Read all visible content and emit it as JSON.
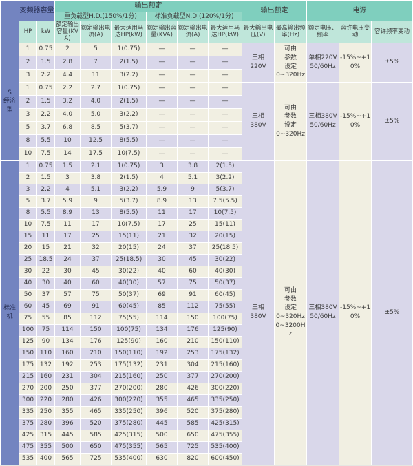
{
  "colors": {
    "group_header_blue": "#7384c0",
    "section_header_teal": "#7fcfbe",
    "sub_header_teal": "#93d7c6",
    "column_header_teal": "#bfe6da",
    "row_cream": "#f1efe2",
    "row_lavender": "#d9d7ea",
    "grid_line": "#ffffff",
    "text": "#3c3c3c"
  },
  "table": {
    "headers": {
      "capacity": "变频器容量",
      "output_rating": "输出额定",
      "hd": "重负载型H.D.(150%/1分)",
      "nd": "标准负载型N.D.(120%/1分)",
      "power": "电源",
      "cols": [
        "HP",
        "kW",
        "额定输出容量(KVA)",
        "额定输出电流(A)",
        "最大适用马达HP(kW)",
        "额定输出容量(KVA)",
        "额定输出电流(A)",
        "最大适用马达HP(kW)",
        "最大输出电压(V)",
        "最高输出频率(Hz)",
        "额定电压、频率",
        "容许电压变动",
        "容许频率变动"
      ]
    },
    "col_keys": [
      "hp",
      "kw",
      "hd-kva",
      "hd-current",
      "hd-motor",
      "nd-kva",
      "nd-current",
      "nd-motor"
    ],
    "groups": [
      {
        "label": "S\n经济型",
        "blocks": [
          {
            "voltage": "三相\n220V",
            "frequency": "可由\n参数\n设定\n0~320Hz",
            "supply": "单相220V\n50/60Hz",
            "voltage_tolerance": "-15%~+10%",
            "frequency_tolerance": "±5%",
            "rows": [
              {
                "shaded": false,
                "cells": [
                  "1",
                  "0.75",
                  "2",
                  "5",
                  "1(0.75)",
                  "—",
                  "—",
                  "—"
                ]
              },
              {
                "shaded": true,
                "cells": [
                  "2",
                  "1.5",
                  "2.8",
                  "7",
                  "2(1.5)",
                  "—",
                  "—",
                  "—"
                ]
              },
              {
                "shaded": false,
                "cells": [
                  "3",
                  "2.2",
                  "4.4",
                  "11",
                  "3(2.2)",
                  "—",
                  "—",
                  "—"
                ]
              }
            ]
          },
          {
            "voltage": "三相\n380V",
            "frequency": "可由\n参数\n设定\n0~320Hz",
            "supply": "三相380V\n50/60Hz",
            "voltage_tolerance": "-15%~+10%",
            "frequency_tolerance": "±5%",
            "rows": [
              {
                "shaded": false,
                "cells": [
                  "1",
                  "0.75",
                  "2.2",
                  "2.7",
                  "1(0.75)",
                  "—",
                  "—",
                  "—"
                ]
              },
              {
                "shaded": true,
                "cells": [
                  "2",
                  "1.5",
                  "3.2",
                  "4.0",
                  "2(1.5)",
                  "—",
                  "—",
                  "—"
                ]
              },
              {
                "shaded": false,
                "cells": [
                  "3",
                  "2.2",
                  "4.0",
                  "5.0",
                  "3(2.2)",
                  "—",
                  "—",
                  "—"
                ]
              },
              {
                "shaded": false,
                "cells": [
                  "5",
                  "3.7",
                  "6.8",
                  "8.5",
                  "5(3.7)",
                  "—",
                  "—",
                  "—"
                ]
              },
              {
                "shaded": true,
                "cells": [
                  "8",
                  "5.5",
                  "10",
                  "12.5",
                  "8(5.5)",
                  "—",
                  "—",
                  "—"
                ]
              },
              {
                "shaded": false,
                "cells": [
                  "10",
                  "7.5",
                  "14",
                  "17.5",
                  "10(7.5)",
                  "—",
                  "—",
                  "—"
                ]
              }
            ]
          }
        ]
      },
      {
        "label": "标准机",
        "blocks": [
          {
            "voltage": "三相\n380V",
            "frequency": "可由\n参数\n设定\n0~320Hz\n0~3200Hz",
            "supply": "三相380V\n50/60Hz",
            "voltage_tolerance": "-15%~+10%",
            "frequency_tolerance": "±5%",
            "rows": [
              {
                "shaded": true,
                "cells": [
                  "1",
                  "0.75",
                  "1.5",
                  "2.1",
                  "1(0.75)",
                  "3",
                  "3.8",
                  "2(1.5)"
                ]
              },
              {
                "shaded": false,
                "cells": [
                  "2",
                  "1.5",
                  "3",
                  "3.8",
                  "2(1.5)",
                  "4",
                  "5.1",
                  "3(2.2)"
                ]
              },
              {
                "shaded": true,
                "cells": [
                  "3",
                  "2.2",
                  "4",
                  "5.1",
                  "3(2.2)",
                  "5.9",
                  "9",
                  "5(3.7)"
                ]
              },
              {
                "shaded": false,
                "cells": [
                  "5",
                  "3.7",
                  "5.9",
                  "9",
                  "5(3.7)",
                  "8.9",
                  "13",
                  "7.5(5.5)"
                ]
              },
              {
                "shaded": true,
                "cells": [
                  "8",
                  "5.5",
                  "8.9",
                  "13",
                  "8(5.5)",
                  "11",
                  "17",
                  "10(7.5)"
                ]
              },
              {
                "shaded": false,
                "cells": [
                  "10",
                  "7.5",
                  "11",
                  "17",
                  "10(7.5)",
                  "17",
                  "25",
                  "15(11)"
                ]
              },
              {
                "shaded": true,
                "cells": [
                  "15",
                  "11",
                  "17",
                  "25",
                  "15(11)",
                  "21",
                  "32",
                  "20(15)"
                ]
              },
              {
                "shaded": false,
                "cells": [
                  "20",
                  "15",
                  "21",
                  "32",
                  "20(15)",
                  "24",
                  "37",
                  "25(18.5)"
                ]
              },
              {
                "shaded": true,
                "cells": [
                  "25",
                  "18.5",
                  "24",
                  "37",
                  "25(18.5)",
                  "30",
                  "45",
                  "30(22)"
                ]
              },
              {
                "shaded": false,
                "cells": [
                  "30",
                  "22",
                  "30",
                  "45",
                  "30(22)",
                  "40",
                  "60",
                  "40(30)"
                ]
              },
              {
                "shaded": true,
                "cells": [
                  "40",
                  "30",
                  "40",
                  "60",
                  "40(30)",
                  "57",
                  "75",
                  "50(37)"
                ]
              },
              {
                "shaded": false,
                "cells": [
                  "50",
                  "37",
                  "57",
                  "75",
                  "50(37)",
                  "69",
                  "91",
                  "60(45)"
                ]
              },
              {
                "shaded": true,
                "cells": [
                  "60",
                  "45",
                  "69",
                  "91",
                  "60(45)",
                  "85",
                  "112",
                  "75(55)"
                ]
              },
              {
                "shaded": false,
                "cells": [
                  "75",
                  "55",
                  "85",
                  "112",
                  "75(55)",
                  "114",
                  "150",
                  "100(75)"
                ]
              },
              {
                "shaded": true,
                "cells": [
                  "100",
                  "75",
                  "114",
                  "150",
                  "100(75)",
                  "134",
                  "176",
                  "125(90)"
                ]
              },
              {
                "shaded": false,
                "cells": [
                  "125",
                  "90",
                  "134",
                  "176",
                  "125(90)",
                  "160",
                  "210",
                  "150(110)"
                ]
              },
              {
                "shaded": true,
                "cells": [
                  "150",
                  "110",
                  "160",
                  "210",
                  "150(110)",
                  "192",
                  "253",
                  "175(132)"
                ]
              },
              {
                "shaded": false,
                "cells": [
                  "175",
                  "132",
                  "192",
                  "253",
                  "175(132)",
                  "231",
                  "304",
                  "215(160)"
                ]
              },
              {
                "shaded": true,
                "cells": [
                  "215",
                  "160",
                  "231",
                  "304",
                  "215(160)",
                  "250",
                  "377",
                  "270(200)"
                ]
              },
              {
                "shaded": false,
                "cells": [
                  "270",
                  "200",
                  "250",
                  "377",
                  "270(200)",
                  "280",
                  "426",
                  "300(220)"
                ]
              },
              {
                "shaded": true,
                "cells": [
                  "300",
                  "220",
                  "280",
                  "426",
                  "300(220)",
                  "355",
                  "465",
                  "335(250)"
                ]
              },
              {
                "shaded": false,
                "cells": [
                  "335",
                  "250",
                  "355",
                  "465",
                  "335(250)",
                  "396",
                  "520",
                  "375(280)"
                ]
              },
              {
                "shaded": true,
                "cells": [
                  "375",
                  "280",
                  "396",
                  "520",
                  "375(280)",
                  "445",
                  "585",
                  "425(315)"
                ]
              },
              {
                "shaded": false,
                "cells": [
                  "425",
                  "315",
                  "445",
                  "585",
                  "425(315)",
                  "500",
                  "650",
                  "475(355)"
                ]
              },
              {
                "shaded": true,
                "cells": [
                  "475",
                  "355",
                  "500",
                  "650",
                  "475(355)",
                  "565",
                  "725",
                  "535(400)"
                ]
              },
              {
                "shaded": false,
                "cells": [
                  "535",
                  "400",
                  "565",
                  "725",
                  "535(400)",
                  "630",
                  "820",
                  "600(450)"
                ]
              }
            ]
          }
        ]
      }
    ]
  }
}
